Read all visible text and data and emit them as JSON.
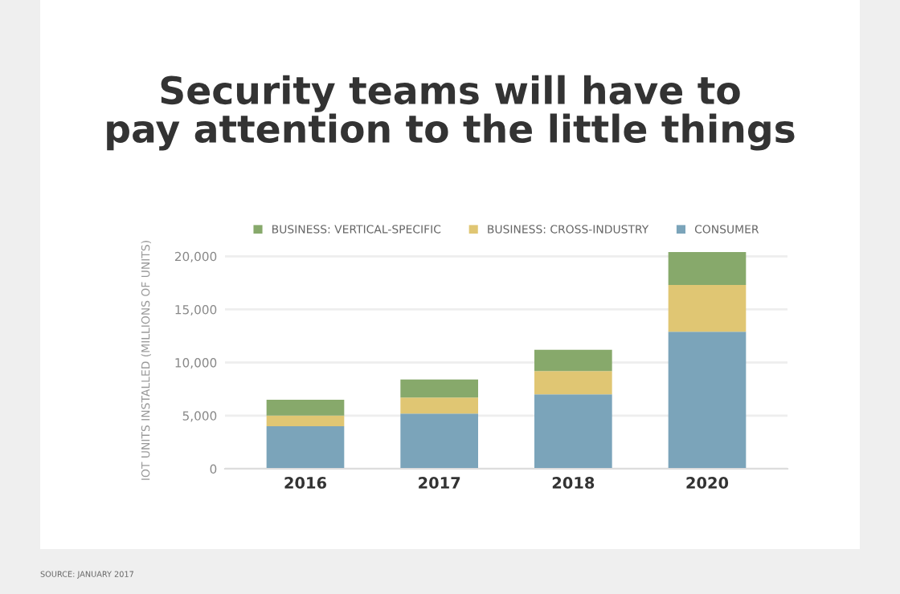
{
  "chart_data": {
    "type": "bar",
    "title": "Security teams will have to\npay attention to the little things",
    "ylabel": "IOT UNITS INSTALLED (MILLIONS OF UNITS)",
    "categories": [
      "2016",
      "2017",
      "2018",
      "2020"
    ],
    "stacked": true,
    "series": [
      {
        "name": "CONSUMER",
        "color": "#7ba4ba",
        "values": [
          4000,
          5200,
          7000,
          12900
        ]
      },
      {
        "name": "BUSINESS: CROSS-INDUSTRY",
        "color": "#e0c673",
        "values": [
          1000,
          1500,
          2200,
          4400
        ]
      },
      {
        "name": "BUSINESS: VERTICAL-SPECIFIC",
        "color": "#87a96b",
        "values": [
          1500,
          1700,
          2000,
          3100
        ]
      }
    ],
    "ylim": [
      0,
      20400
    ],
    "yticks": [
      {
        "value": 0,
        "label": "0"
      },
      {
        "value": 5000,
        "label": "5,000"
      },
      {
        "value": 10000,
        "label": "10,000"
      },
      {
        "value": 15000,
        "label": "15,000"
      },
      {
        "value": 20000,
        "label": "20,000"
      }
    ],
    "grid": "y",
    "legend": "top",
    "annotations": [
      "SOURCE: JANUARY 2017"
    ]
  }
}
